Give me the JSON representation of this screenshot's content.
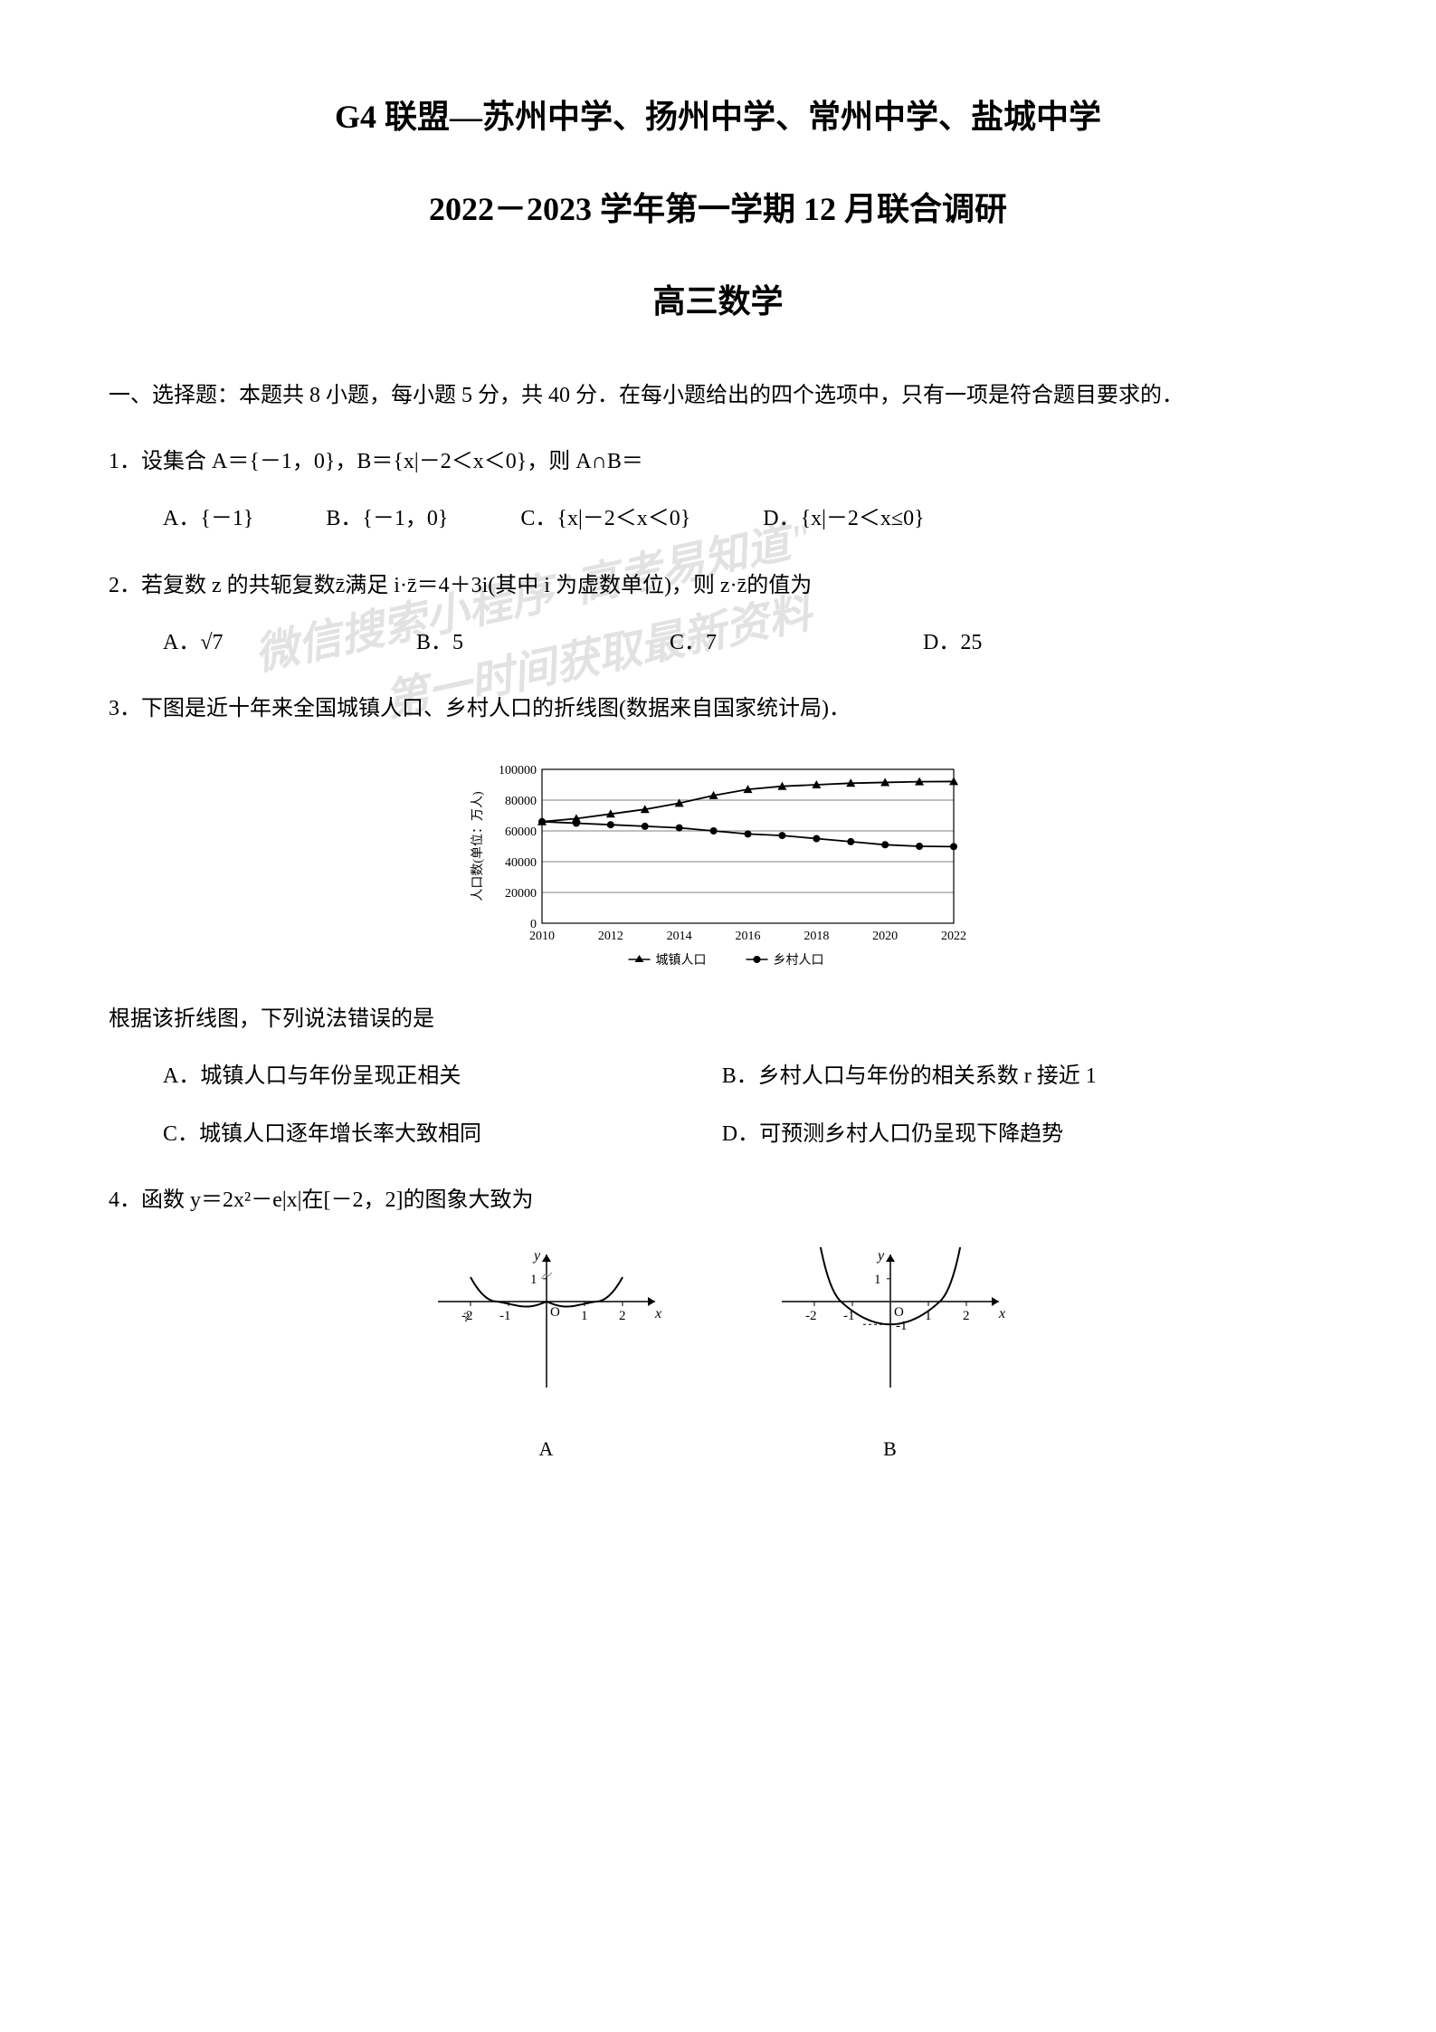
{
  "title": {
    "main": "G4 联盟—苏州中学、扬州中学、常州中学、盐城中学",
    "sub": "2022－2023 学年第一学期 12 月联合调研",
    "subject": "高三数学"
  },
  "section_header": "一、选择题：本题共 8 小题，每小题 5 分，共 40 分．在每小题给出的四个选项中，只有一项是符合题目要求的．",
  "q1": {
    "text": "1．设集合 A＝{－1，0}，B＝{x|－2＜x＜0}，则 A∩B＝",
    "a": "A．{－1}",
    "b": "B．{－1，0}",
    "c": "C．{x|－2＜x＜0}",
    "d": "D．{x|－2＜x≤0}"
  },
  "q2": {
    "text": "2．若复数 z 的共轭复数z̄满足 i·z̄＝4＋3i(其中 i 为虚数单位)，则 z·z̄的值为",
    "a": "A．√7",
    "b": "B．5",
    "c": "C．7",
    "d": "D．25"
  },
  "q3": {
    "text": "3．下图是近十年来全国城镇人口、乡村人口的折线图(数据来自国家统计局)．",
    "followup": "根据该折线图，下列说法错误的是",
    "a": "A．城镇人口与年份呈现正相关",
    "b": "B．乡村人口与年份的相关系数 r 接近 1",
    "c": "C．城镇人口逐年增长率大致相同",
    "d": "D．可预测乡村人口仍呈现下降趋势"
  },
  "q4": {
    "text": "4．函数 y＝2x²－e|x|在[－2，2]的图象大致为",
    "label_a": "A",
    "label_b": "B"
  },
  "chart": {
    "ylabel": "人口数(单位：万人)",
    "ymax": 100000,
    "ytick_step": 20000,
    "yticks": [
      "0",
      "20000",
      "40000",
      "60000",
      "80000",
      "100000"
    ],
    "years": [
      "2010",
      "2012",
      "2014",
      "2016",
      "2018",
      "2020",
      "2022"
    ],
    "series1_name": "城镇人口",
    "series1_marker": "triangle",
    "series1_color": "#000000",
    "series1_values": [
      66000,
      68000,
      71000,
      74000,
      78000,
      83000,
      87000,
      89000,
      90000,
      91000,
      91500,
      92000,
      92100
    ],
    "series2_name": "乡村人口",
    "series2_marker": "circle",
    "series2_color": "#000000",
    "series2_values": [
      66000,
      65000,
      64000,
      63000,
      62000,
      60000,
      58000,
      57000,
      55000,
      53000,
      51000,
      50000,
      49800
    ],
    "background_color": "#ffffff",
    "grid_color": "#000000"
  },
  "graphs": {
    "axis_color": "#000000",
    "curve_color": "#000000",
    "y_label": "y",
    "x_label": "x",
    "y_tick": "1",
    "x_ticks_a": [
      "-2",
      "-1",
      "1",
      "2"
    ],
    "x_ticks_b": [
      "-2",
      "-1",
      "1",
      "2"
    ],
    "x_intercept_a": 1.3,
    "y_min_b": -1,
    "a_undershoot": 7
  },
  "watermark": {
    "line1": "微信搜索小程序\"高考易知道\"",
    "line2": "第一时间获取最新资料"
  }
}
